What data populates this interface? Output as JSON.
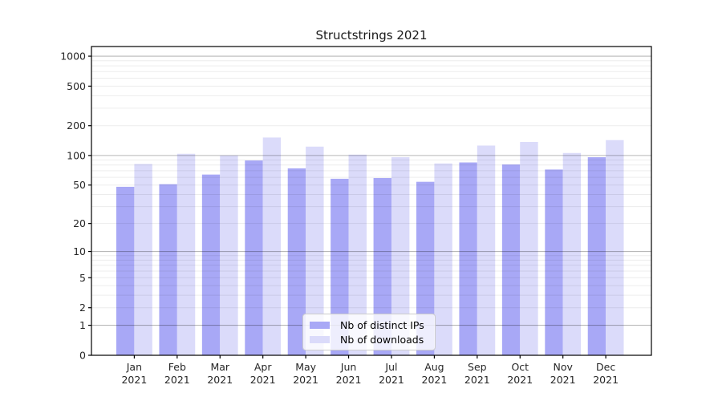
{
  "chart_data": {
    "type": "bar",
    "title": "Structstrings 2021",
    "x_labels": [
      "Jan\n2021",
      "Feb\n2021",
      "Mar\n2021",
      "Apr\n2021",
      "May\n2021",
      "Jun\n2021",
      "Jul\n2021",
      "Aug\n2021",
      "Sep\n2021",
      "Oct\n2021",
      "Nov\n2021",
      "Dec\n2021"
    ],
    "series": [
      {
        "name": "Nb of distinct IPs",
        "color": "#a8a8f6",
        "values": [
          48,
          51,
          64,
          89,
          74,
          58,
          59,
          54,
          85,
          81,
          72,
          96
        ]
      },
      {
        "name": "Nb of downloads",
        "color": "#dbdbfa",
        "values": [
          82,
          104,
          100,
          152,
          123,
          102,
          96,
          83,
          126,
          137,
          106,
          143
        ]
      }
    ],
    "y_scale": "log1p",
    "y_scale_note": "tick position proportional to log10(1+value)",
    "y_ticks": [
      0,
      1,
      2,
      5,
      10,
      20,
      50,
      100,
      200,
      500,
      1000
    ],
    "ylim": [
      0,
      1250
    ],
    "grid": {
      "major_at": [
        1,
        10,
        100,
        1000
      ],
      "minor_at": "2-9 per decade",
      "visible": true
    },
    "legend": {
      "position": "lower center",
      "entries": [
        "Nb of distinct IPs",
        "Nb of downloads"
      ]
    },
    "colors": {
      "distinct_ips": "#a8a8f6",
      "downloads": "#dbdbfa",
      "major_grid": "#b3b3b3",
      "minor_grid": "#e8e8e8",
      "axis": "#000000",
      "text": "#262626"
    }
  }
}
